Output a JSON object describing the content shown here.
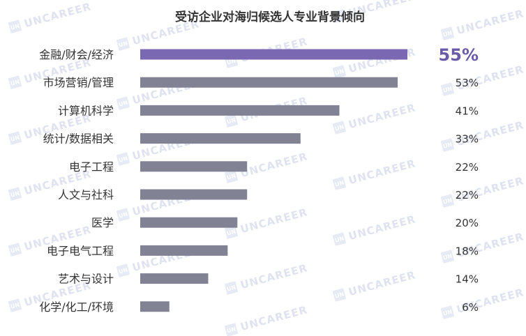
{
  "chart_data": {
    "type": "bar",
    "orientation": "horizontal",
    "title": "受访企业对海归候选人专业背景倾向",
    "categories": [
      "金融/财会/经济",
      "市场营销/管理",
      "计算机科学",
      "统计/数据相关",
      "电子工程",
      "人文与社科",
      "医学",
      "电子电气工程",
      "艺术与设计",
      "化学/化工/环境"
    ],
    "values": [
      55,
      53,
      41,
      33,
      22,
      22,
      20,
      18,
      14,
      6
    ],
    "value_labels": [
      "55%",
      "53%",
      "41%",
      "33%",
      "22%",
      "22%",
      "20%",
      "18%",
      "14%",
      "6%"
    ],
    "highlight_index": 0,
    "unit": "%",
    "xlim": [
      0,
      55
    ],
    "grid": false,
    "legend": "none"
  },
  "watermark": {
    "text": "UNCAREER",
    "logo_text": "UN"
  },
  "colors": {
    "highlight_bar": "#7b68b3",
    "bar": "#828295",
    "highlight_label": "#6b5aa8"
  }
}
